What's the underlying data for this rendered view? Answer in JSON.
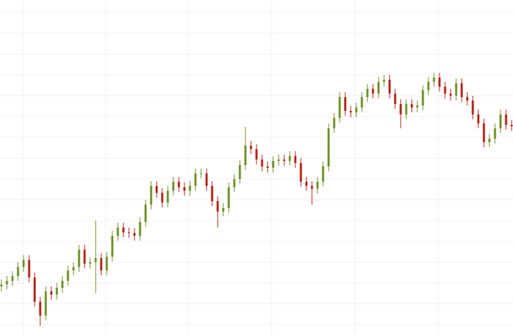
{
  "chart_data": {
    "type": "candlestick",
    "x": [
      0,
      1,
      2,
      3,
      4,
      5,
      6,
      7,
      8,
      9,
      10,
      11,
      12,
      13,
      14,
      15,
      16,
      17,
      18,
      19,
      20,
      21,
      22,
      23,
      24,
      25,
      26,
      27,
      28,
      29,
      30,
      31,
      32,
      33,
      34,
      35,
      36,
      37,
      38,
      39,
      40,
      41,
      42,
      43,
      44,
      45,
      46,
      47,
      48,
      49,
      50,
      51,
      52,
      53,
      54,
      55,
      56,
      57,
      58,
      59,
      60,
      61,
      62,
      63,
      64,
      65,
      66,
      67,
      68,
      69,
      70,
      71,
      72,
      73,
      74,
      75,
      76,
      77,
      78,
      79,
      80,
      81,
      82,
      83,
      84,
      85,
      86,
      87,
      88,
      89,
      90,
      91,
      92
    ],
    "open": [
      70,
      73,
      78,
      85,
      98,
      108,
      83,
      48,
      28,
      63,
      58,
      68,
      78,
      93,
      98,
      123,
      103,
      105,
      111,
      93,
      113,
      143,
      155,
      148,
      147,
      143,
      163,
      188,
      215,
      205,
      191,
      208,
      221,
      213,
      208,
      215,
      233,
      233,
      215,
      193,
      178,
      183,
      213,
      225,
      245,
      273,
      268,
      253,
      243,
      241,
      251,
      253,
      251,
      258,
      248,
      221,
      215,
      211,
      221,
      243,
      298,
      313,
      343,
      323,
      321,
      328,
      343,
      355,
      348,
      365,
      368,
      348,
      333,
      318,
      333,
      328,
      331,
      353,
      365,
      371,
      358,
      348,
      345,
      363,
      343,
      338,
      318,
      305,
      278,
      283,
      298,
      318,
      303
    ],
    "high": [
      80,
      85,
      92,
      105,
      115,
      115,
      90,
      55,
      70,
      70,
      75,
      85,
      100,
      105,
      130,
      130,
      112,
      165,
      118,
      120,
      150,
      162,
      162,
      155,
      154,
      170,
      195,
      222,
      222,
      212,
      215,
      228,
      228,
      220,
      222,
      240,
      240,
      240,
      222,
      200,
      190,
      220,
      232,
      252,
      300,
      280,
      275,
      260,
      250,
      258,
      260,
      260,
      265,
      265,
      255,
      228,
      222,
      228,
      250,
      305,
      320,
      350,
      350,
      330,
      335,
      350,
      362,
      362,
      372,
      375,
      375,
      355,
      340,
      340,
      340,
      338,
      360,
      372,
      378,
      378,
      365,
      355,
      370,
      370,
      350,
      345,
      325,
      312,
      290,
      305,
      325,
      325,
      310
    ],
    "low": [
      63,
      66,
      71,
      78,
      91,
      76,
      41,
      13,
      21,
      51,
      51,
      61,
      71,
      86,
      91,
      96,
      96,
      60,
      86,
      86,
      106,
      136,
      141,
      140,
      136,
      136,
      156,
      181,
      198,
      184,
      184,
      201,
      206,
      201,
      201,
      208,
      226,
      208,
      186,
      155,
      171,
      176,
      206,
      218,
      238,
      261,
      246,
      236,
      234,
      234,
      244,
      244,
      244,
      241,
      214,
      208,
      188,
      204,
      214,
      236,
      291,
      306,
      316,
      314,
      314,
      321,
      336,
      341,
      341,
      358,
      341,
      326,
      298,
      311,
      321,
      321,
      324,
      346,
      358,
      351,
      341,
      338,
      338,
      336,
      331,
      311,
      298,
      271,
      271,
      276,
      291,
      296,
      294
    ],
    "close": [
      73,
      78,
      85,
      98,
      108,
      83,
      48,
      28,
      63,
      58,
      68,
      78,
      93,
      98,
      123,
      103,
      105,
      111,
      93,
      113,
      143,
      155,
      148,
      147,
      143,
      163,
      188,
      215,
      205,
      191,
      208,
      221,
      213,
      208,
      215,
      233,
      233,
      215,
      193,
      178,
      183,
      213,
      225,
      245,
      273,
      268,
      253,
      243,
      241,
      251,
      253,
      251,
      258,
      248,
      221,
      215,
      211,
      221,
      243,
      298,
      313,
      343,
      323,
      321,
      328,
      343,
      355,
      348,
      365,
      368,
      348,
      333,
      318,
      333,
      328,
      331,
      353,
      365,
      371,
      358,
      348,
      345,
      363,
      343,
      338,
      318,
      305,
      278,
      283,
      298,
      318,
      303,
      301
    ],
    "up_color": "#6b8e23",
    "down_color": "#b01e10",
    "xlim": [
      -0.25,
      92.25
    ],
    "xticks": [
      3.875,
      18.75,
      33.75,
      48.75,
      63.75,
      78.75
    ],
    "ylim": [
      0,
      483
    ],
    "yticks": [
      15,
      45,
      75,
      105,
      135,
      165,
      195,
      225,
      255,
      285,
      315,
      345,
      375,
      405,
      435,
      465
    ],
    "grid": true
  }
}
